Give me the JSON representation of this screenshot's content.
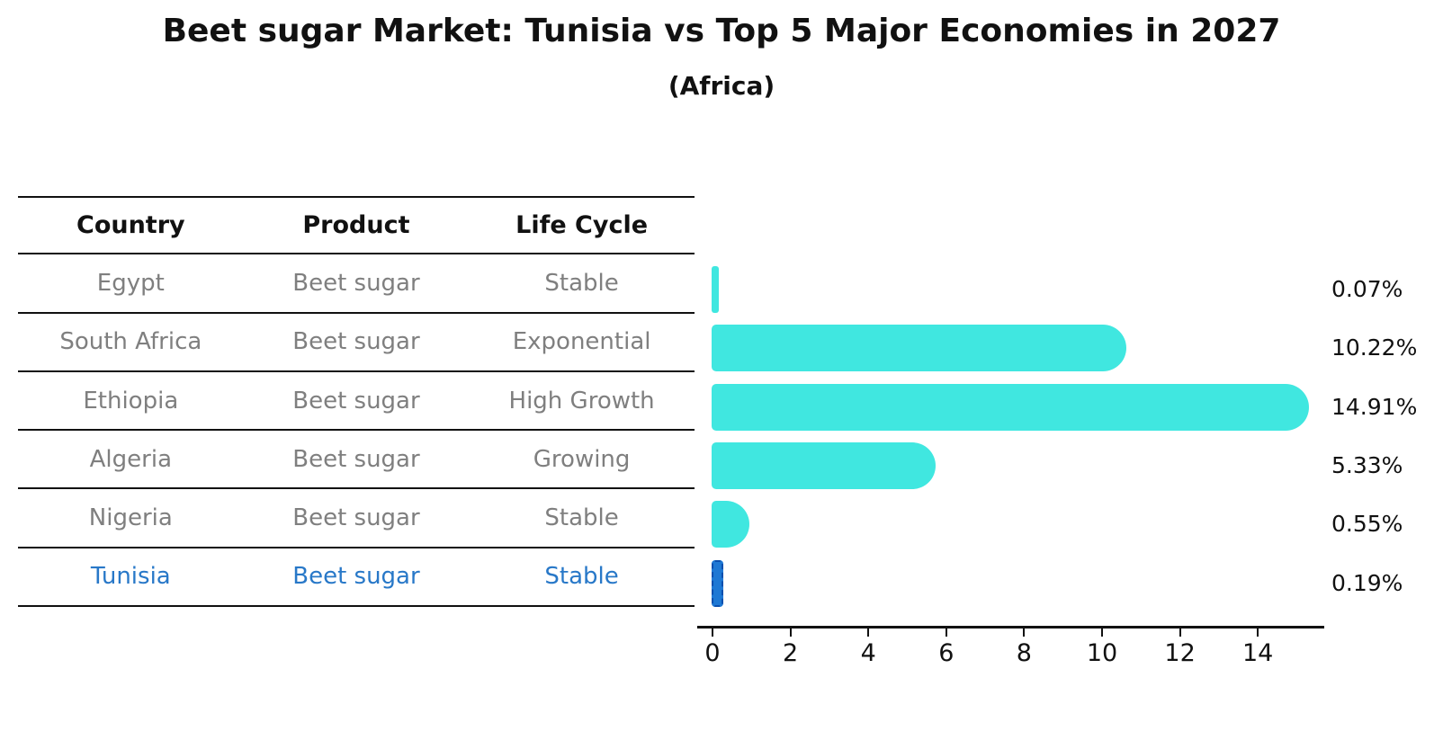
{
  "title": "Beet sugar Market: Tunisia vs Top 5 Major Economies in 2027",
  "subtitle": "(Africa)",
  "table": {
    "headers": [
      "Country",
      "Product",
      "Life Cycle"
    ],
    "rows": [
      {
        "country": "Egypt",
        "product": "Beet sugar",
        "life_cycle": "Stable",
        "highlight": false
      },
      {
        "country": "South Africa",
        "product": "Beet sugar",
        "life_cycle": "Exponential",
        "highlight": false
      },
      {
        "country": "Ethiopia",
        "product": "Beet sugar",
        "life_cycle": "High Growth",
        "highlight": false
      },
      {
        "country": "Algeria",
        "product": "Beet sugar",
        "life_cycle": "Growing",
        "highlight": false
      },
      {
        "country": "Nigeria",
        "product": "Beet sugar",
        "life_cycle": "Stable",
        "highlight": false
      },
      {
        "country": "Tunisia",
        "product": "Beet sugar",
        "life_cycle": "Stable",
        "highlight": true
      }
    ]
  },
  "chart_data": {
    "type": "bar",
    "orientation": "horizontal",
    "title": "Beet sugar Market: Tunisia vs Top 5 Major Economies in 2027 (Africa)",
    "categories": [
      "Egypt",
      "South Africa",
      "Ethiopia",
      "Algeria",
      "Nigeria",
      "Tunisia"
    ],
    "values": [
      0.07,
      10.22,
      14.91,
      5.33,
      0.55,
      0.19
    ],
    "value_labels": [
      "0.07%",
      "10.22%",
      "14.91%",
      "5.33%",
      "0.55%",
      "0.19%"
    ],
    "x_ticks": [
      "0",
      "2",
      "4",
      "6",
      "8",
      "10",
      "12",
      "14"
    ],
    "xlim": [
      0,
      15.8
    ],
    "grid": false,
    "legend": false,
    "unit": "%",
    "bar_color": "#40e7e0",
    "highlight_bar_color": "#1e78d4",
    "highlight_index": 5
  },
  "colors": {
    "text": "#111111",
    "muted_text": "#7f7f7f",
    "highlight_text": "#2878c8",
    "bar": "#40e7e0",
    "highlight_bar": "#1e78d4"
  }
}
